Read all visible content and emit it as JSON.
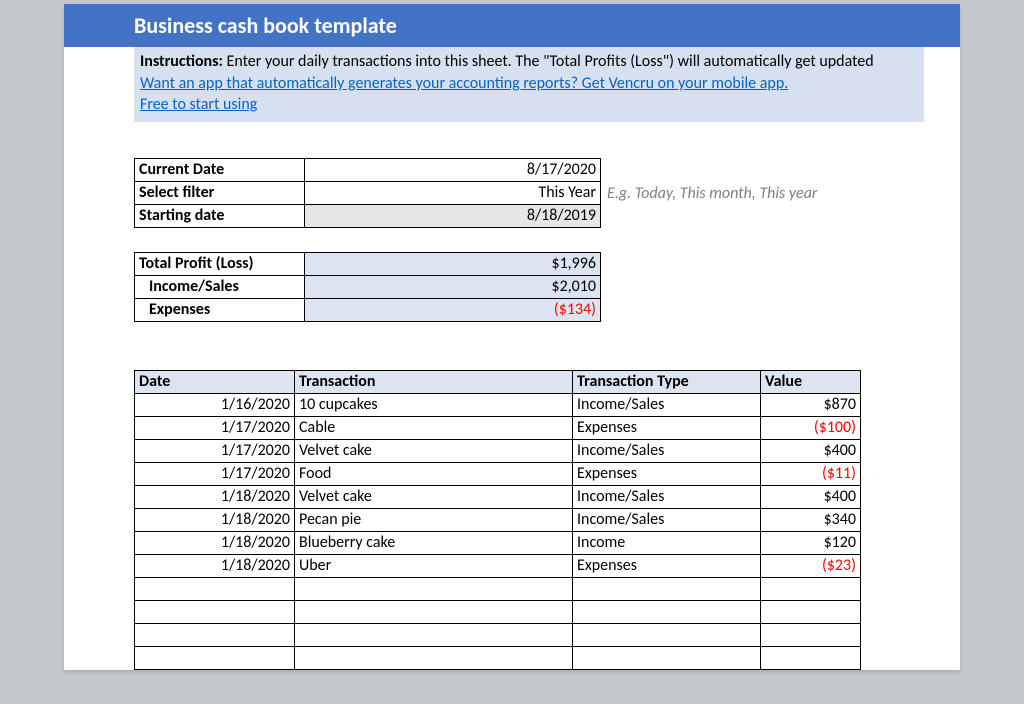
{
  "colors": {
    "page_bg": "#c4c8cc",
    "sheet_bg": "#ffffff",
    "title_bg": "#4472c4",
    "title_fg": "#ffffff",
    "instructions_bg": "#d6e0f0",
    "cell_shaded": "#dce3f1",
    "cell_grey": "#e6e6e6",
    "link": "#0563c1",
    "negative": "#ff0000",
    "hint": "#808080",
    "border": "#000000"
  },
  "title": "Business cash book template",
  "instructions": {
    "label": "Instructions:",
    "text": " Enter your daily transactions into this sheet. The \"Total Profits (Loss\") will automatically get updated",
    "link_line1": "Want an app that automatically generates your accounting reports? Get Vencru on your mobile app.",
    "link_line2": "Free to start using"
  },
  "filter": {
    "rows": [
      {
        "label": "Current Date",
        "value": "8/17/2020",
        "shaded": false,
        "hint": ""
      },
      {
        "label": "Select filter",
        "value": "This Year",
        "shaded": false,
        "hint": "E.g. Today, This month, This year"
      },
      {
        "label": "Starting date",
        "value": "8/18/2019",
        "shaded": true,
        "hint": ""
      }
    ]
  },
  "summary": {
    "rows": [
      {
        "label": "Total Profit (Loss)",
        "value": "$1,996",
        "indent": false,
        "neg": false
      },
      {
        "label": "Income/Sales",
        "value": "$2,010",
        "indent": true,
        "neg": false
      },
      {
        "label": "Expenses",
        "value": "($134)",
        "indent": true,
        "neg": true
      }
    ]
  },
  "transactions": {
    "headers": {
      "date": "Date",
      "tx": "Transaction",
      "type": "Transaction Type",
      "value": "Value"
    },
    "rows": [
      {
        "date": "1/16/2020",
        "tx": "10 cupcakes",
        "type": "Income/Sales",
        "value": "$870",
        "neg": false
      },
      {
        "date": "1/17/2020",
        "tx": "Cable",
        "type": "Expenses",
        "value": "($100)",
        "neg": true
      },
      {
        "date": "1/17/2020",
        "tx": "Velvet cake",
        "type": "Income/Sales",
        "value": "$400",
        "neg": false
      },
      {
        "date": "1/17/2020",
        "tx": "Food",
        "type": "Expenses",
        "value": "($11)",
        "neg": true
      },
      {
        "date": "1/18/2020",
        "tx": "Velvet cake",
        "type": "Income/Sales",
        "value": "$400",
        "neg": false
      },
      {
        "date": "1/18/2020",
        "tx": "Pecan pie",
        "type": "Income/Sales",
        "value": "$340",
        "neg": false
      },
      {
        "date": "1/18/2020",
        "tx": "Blueberry cake",
        "type": "Income",
        "value": "$120",
        "neg": false
      },
      {
        "date": "1/18/2020",
        "tx": "Uber",
        "type": "Expenses",
        "value": "($23)",
        "neg": true
      }
    ],
    "empty_rows": 4
  }
}
